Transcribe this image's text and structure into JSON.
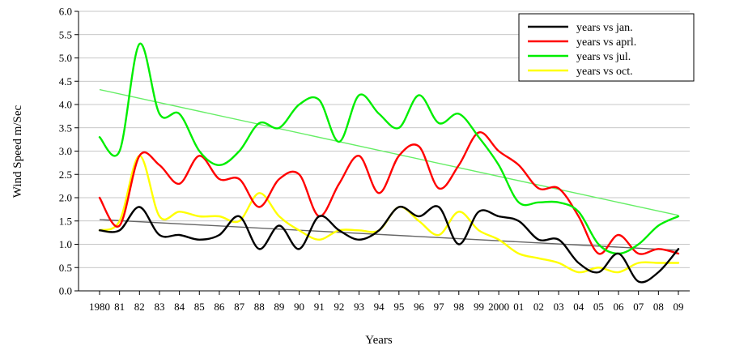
{
  "chart_data": {
    "type": "line",
    "title": "",
    "xlabel": "Years",
    "ylabel": "Wind Speed m/Sec",
    "ylim": [
      0,
      6
    ],
    "yticks": [
      "0.0",
      "0.5",
      "1.0",
      "1.5",
      "2.0",
      "2.5",
      "3.0",
      "3.5",
      "4.0",
      "4.5",
      "5.0",
      "5.5",
      "6.0"
    ],
    "categories": [
      "1980",
      "81",
      "82",
      "83",
      "84",
      "85",
      "86",
      "87",
      "88",
      "89",
      "90",
      "91",
      "92",
      "93",
      "94",
      "95",
      "96",
      "97",
      "98",
      "99",
      "2000",
      "01",
      "02",
      "03",
      "04",
      "05",
      "06",
      "07",
      "08",
      "09"
    ],
    "legend_position": "top-right",
    "series": [
      {
        "name": "years vs jan.",
        "color": "#000000",
        "values": [
          1.3,
          1.3,
          1.8,
          1.2,
          1.2,
          1.1,
          1.2,
          1.6,
          0.9,
          1.4,
          0.9,
          1.6,
          1.3,
          1.1,
          1.3,
          1.8,
          1.6,
          1.8,
          1.0,
          1.7,
          1.6,
          1.5,
          1.1,
          1.1,
          0.6,
          0.4,
          0.8,
          0.2,
          0.4,
          0.9
        ],
        "trend": [
          1.53,
          0.87
        ]
      },
      {
        "name": "years vs aprl.",
        "color": "#ff0000",
        "values": [
          2.0,
          1.4,
          2.9,
          2.7,
          2.3,
          2.9,
          2.4,
          2.4,
          1.8,
          2.4,
          2.5,
          1.6,
          2.3,
          2.9,
          2.1,
          2.9,
          3.1,
          2.2,
          2.7,
          3.4,
          3.0,
          2.7,
          2.2,
          2.2,
          1.6,
          0.8,
          1.2,
          0.8,
          0.9,
          0.8
        ],
        "trend": null
      },
      {
        "name": "years vs jul.",
        "color": "#00ee00",
        "values": [
          3.3,
          3.0,
          5.3,
          3.8,
          3.8,
          3.0,
          2.7,
          3.0,
          3.6,
          3.5,
          4.0,
          4.1,
          3.2,
          4.2,
          3.8,
          3.5,
          4.2,
          3.6,
          3.8,
          3.3,
          2.7,
          1.9,
          1.9,
          1.9,
          1.7,
          1.0,
          0.8,
          1.0,
          1.4,
          1.6
        ],
        "trend": [
          4.32,
          1.62
        ]
      },
      {
        "name": "years vs oct.",
        "color": "#ffff00",
        "values": [
          1.3,
          1.5,
          2.9,
          1.6,
          1.7,
          1.6,
          1.6,
          1.5,
          2.1,
          1.6,
          1.3,
          1.1,
          1.3,
          1.3,
          1.3,
          1.8,
          1.5,
          1.2,
          1.7,
          1.3,
          1.1,
          0.8,
          0.7,
          0.6,
          0.4,
          0.5,
          0.4,
          0.6,
          0.6,
          0.6
        ],
        "trend": null
      }
    ]
  }
}
